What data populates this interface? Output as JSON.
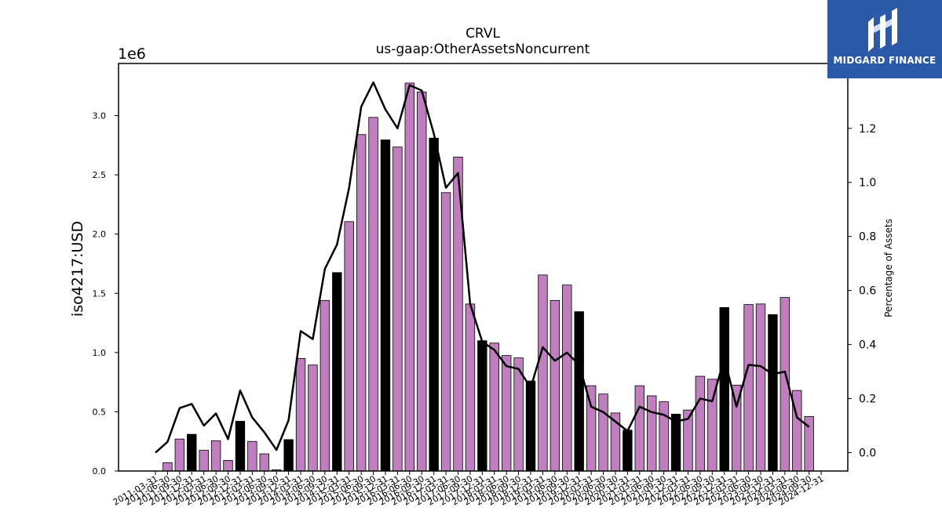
{
  "brand": {
    "name": "MIDGARD FINANCE",
    "bg_color": "#2d5aa8",
    "icon": "midgard-logo-icon"
  },
  "chart_data": {
    "type": "bar",
    "title": "CRVL",
    "subtitle": "us-gaap:OtherAssetsNoncurrent",
    "ylabel": "iso4217:USD",
    "y_multiplier_label": "1e6",
    "y2label": "Percentage of Assets",
    "ylim": [
      0,
      3440000
    ],
    "y2lim": [
      -0.068,
      1.44
    ],
    "yticks": [
      0.0,
      0.5,
      1.0,
      1.5,
      2.0,
      2.5,
      3.0
    ],
    "y2ticks": [
      0.0,
      0.2,
      0.4,
      0.6,
      0.8,
      1.0,
      1.2
    ],
    "colors": {
      "bar": "#bf7fbf",
      "bar_q4": "#000000",
      "line": "#000000"
    },
    "grid": false,
    "categories": [
      "2011-03-31",
      "2011-06-30",
      "2011-09-30",
      "2011-12-31",
      "2012-03-31",
      "2012-06-30",
      "2012-09-30",
      "2012-12-31",
      "2013-03-31",
      "2013-06-30",
      "2013-09-30",
      "2013-12-31",
      "2014-03-31",
      "2014-06-30",
      "2014-09-30",
      "2014-12-31",
      "2015-03-31",
      "2015-06-30",
      "2015-09-30",
      "2015-12-31",
      "2016-03-31",
      "2016-06-30",
      "2016-09-30",
      "2016-12-31",
      "2017-03-31",
      "2017-06-30",
      "2017-09-30",
      "2017-12-31",
      "2018-03-31",
      "2018-06-30",
      "2018-09-30",
      "2018-12-31",
      "2019-03-31",
      "2019-06-30",
      "2019-09-30",
      "2019-12-31",
      "2020-03-31",
      "2020-06-30",
      "2020-09-30",
      "2020-12-31",
      "2021-03-31",
      "2021-06-30",
      "2021-09-30",
      "2021-12-31",
      "2022-03-31",
      "2022-06-30",
      "2022-09-30",
      "2022-12-31",
      "2023-03-31",
      "2023-06-30",
      "2023-09-30",
      "2023-12-31",
      "2024-03-31",
      "2024-06-30",
      "2024-09-30",
      "2024-12-31"
    ],
    "series": [
      {
        "type": "bar",
        "values": [
          0,
          70000,
          270000,
          310000,
          175000,
          255000,
          90000,
          420000,
          250000,
          145000,
          10000,
          265000,
          950000,
          895000,
          1440000,
          1675000,
          2105000,
          2840000,
          2985000,
          2795000,
          2735000,
          3275000,
          3200000,
          2810000,
          2350000,
          2650000,
          1410000,
          1100000,
          1080000,
          975000,
          955000,
          760000,
          1655000,
          1440000,
          1570000,
          1345000,
          720000,
          650000,
          490000,
          345000,
          720000,
          635000,
          585000,
          480000,
          515000,
          800000,
          775000,
          1380000,
          725000,
          1405000,
          1410000,
          1320000,
          1465000,
          680000,
          460000,
          0
        ]
      },
      {
        "type": "line",
        "name": "Percentage of Assets",
        "values": [
          0.0,
          0.04,
          0.165,
          0.18,
          0.1,
          0.145,
          0.05,
          0.23,
          0.13,
          0.075,
          0.01,
          0.12,
          0.45,
          0.42,
          0.68,
          0.77,
          0.98,
          1.28,
          1.37,
          1.27,
          1.2,
          1.36,
          1.34,
          1.18,
          0.98,
          1.035,
          0.55,
          0.41,
          0.38,
          0.32,
          0.31,
          0.24,
          0.39,
          0.34,
          0.37,
          0.325,
          0.17,
          0.15,
          0.115,
          0.08,
          0.17,
          0.15,
          0.14,
          0.115,
          0.125,
          0.2,
          0.19,
          0.35,
          0.17,
          0.325,
          0.32,
          0.29,
          0.3,
          0.13,
          0.095,
          null
        ]
      }
    ]
  }
}
